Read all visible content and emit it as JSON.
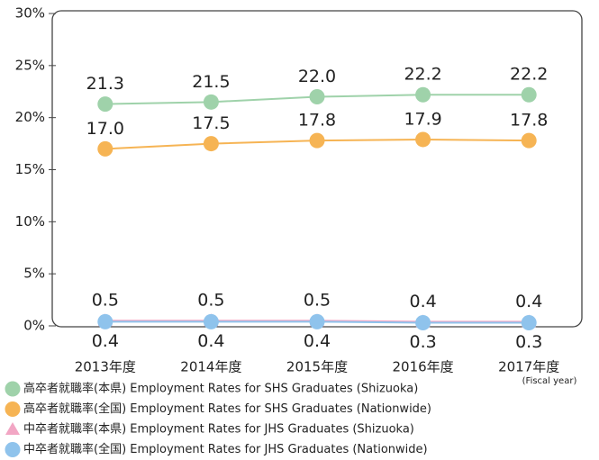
{
  "chart_data": {
    "type": "line",
    "categories": [
      "2013年度",
      "2014年度",
      "2015年度",
      "2016年度",
      "2017年度"
    ],
    "x_annotation": "(Fiscal year)",
    "ylim": [
      0,
      30
    ],
    "yticks": [
      {
        "value": 0,
        "label": "0%"
      },
      {
        "value": 5,
        "label": "5%"
      },
      {
        "value": 10,
        "label": "10%"
      },
      {
        "value": 15,
        "label": "15%"
      },
      {
        "value": 20,
        "label": "20%"
      },
      {
        "value": 25,
        "label": "25%"
      },
      {
        "value": 30,
        "label": "30%"
      }
    ],
    "series": [
      {
        "name": "高卒者就職率(本県) Employment Rates for SHS Graduates (Shizuoka)",
        "color": "#9fd2aa",
        "marker": "circle",
        "values": [
          21.3,
          21.5,
          22.0,
          22.2,
          22.2
        ],
        "value_labels": [
          "21.3",
          "21.5",
          "22.0",
          "22.2",
          "22.2"
        ]
      },
      {
        "name": "高卒者就職率(全国) Employment Rates for SHS Graduates (Nationwide)",
        "color": "#f6b454",
        "marker": "circle",
        "values": [
          17.0,
          17.5,
          17.8,
          17.9,
          17.8
        ],
        "value_labels": [
          "17.0",
          "17.5",
          "17.8",
          "17.9",
          "17.8"
        ]
      },
      {
        "name": "中卒者就職率(本県) Employment Rates for JHS Graduates (Shizuoka)",
        "color": "#f2a6c4",
        "marker": "triangle",
        "values": [
          0.5,
          0.5,
          0.5,
          0.4,
          0.4
        ],
        "value_labels": [
          "0.5",
          "0.5",
          "0.5",
          "0.4",
          "0.4"
        ]
      },
      {
        "name": "中卒者就職率(全国) Employment Rates for JHS Graduates (Nationwide)",
        "color": "#8fc3ec",
        "marker": "circle",
        "values": [
          0.4,
          0.4,
          0.4,
          0.3,
          0.3
        ],
        "value_labels": [
          "0.4",
          "0.4",
          "0.4",
          "0.3",
          "0.3"
        ]
      }
    ]
  }
}
